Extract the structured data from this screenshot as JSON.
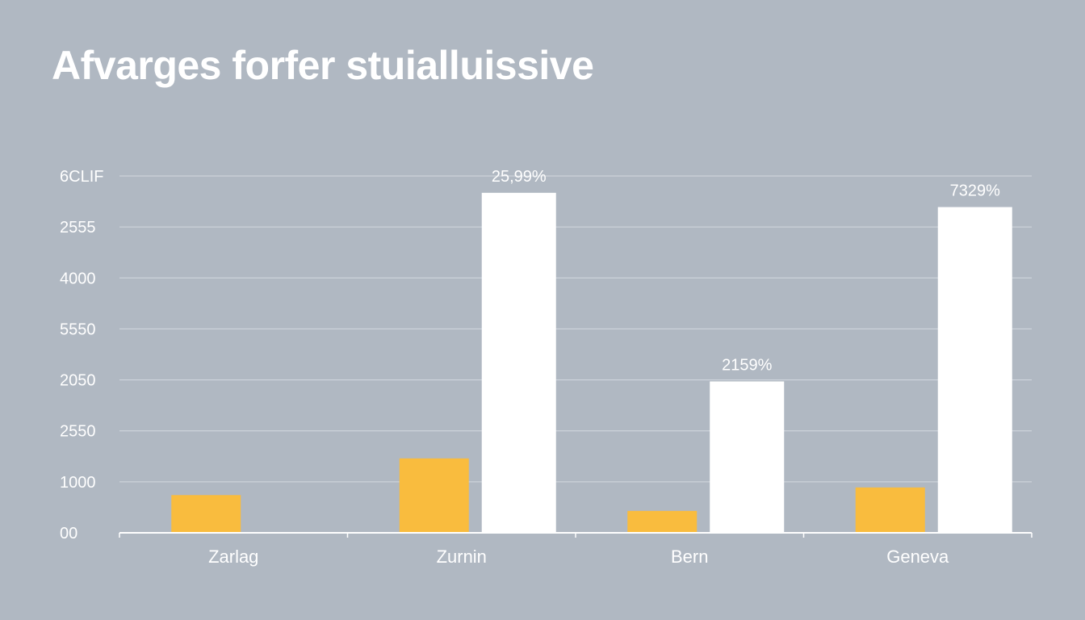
{
  "chart_data": {
    "type": "bar",
    "title": "Afvarges forfer stuialluissive",
    "xlabel": "",
    "ylabel": "",
    "y_tick_labels": [
      "00",
      "1000",
      "2550",
      "2050",
      "5550",
      "4000",
      "2555",
      "6CLIF"
    ],
    "categories": [
      "Zarlag",
      "Zurnin",
      "Bern",
      "Geneva"
    ],
    "series": [
      {
        "values": [
          0.74,
          1.46,
          0.43,
          0.89
        ]
      },
      {
        "values": [
          null,
          6.67,
          2.97,
          6.39
        ],
        "labels": [
          null,
          "25,99%",
          "2159%",
          "7329%"
        ]
      }
    ],
    "ylim": [
      0,
      7
    ],
    "grid": true,
    "legend": "none",
    "colors": {
      "series_1": "#f9bc3e",
      "series_2": "#ffffff",
      "grid": "#d3d9df",
      "axis": "#ffffff",
      "background": "#b0b8c2"
    }
  }
}
